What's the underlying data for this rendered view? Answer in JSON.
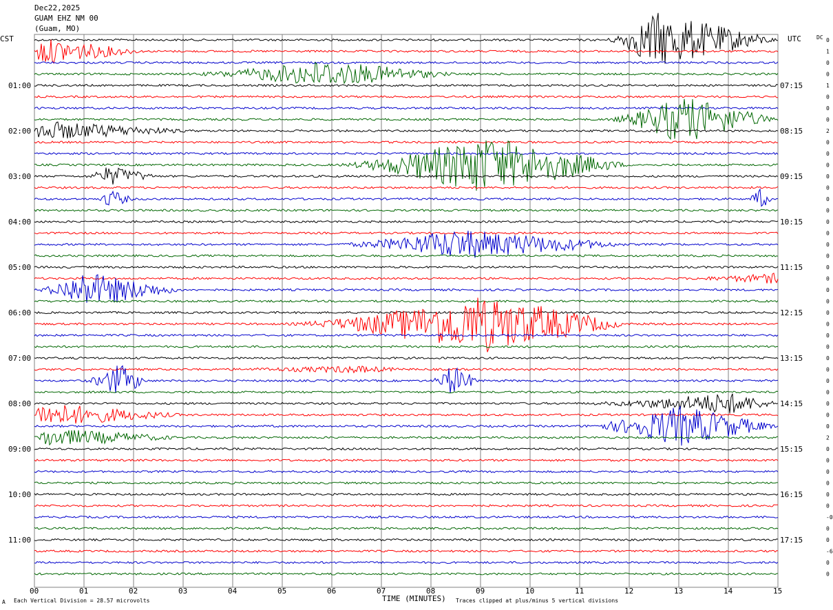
{
  "header": {
    "date": "Dec22,2025",
    "station": "GUAM EHZ NM 00",
    "location": "(Guam, MO)"
  },
  "left_tz": "CST",
  "right_tz": "UTC",
  "dc_label": "DC",
  "footer": {
    "scale": "Each Vertical Division =   28.57 microvolts",
    "xlabel": "TIME (MINUTES)",
    "clip_note": "Traces clipped at plus/minus 5 vertical divisions",
    "corner_mark": "A"
  },
  "colors": {
    "black": "#000000",
    "red": "#ff0000",
    "blue": "#0000cc",
    "green": "#006600",
    "grid": "#808080"
  },
  "chart_data": {
    "type": "line",
    "title": "GUAM EHZ NM 00",
    "xlabel": "TIME (MINUTES)",
    "xlim": [
      0,
      15
    ],
    "x_ticks": [
      "00",
      "01",
      "02",
      "03",
      "04",
      "05",
      "06",
      "07",
      "08",
      "09",
      "10",
      "11",
      "12",
      "13",
      "14",
      "15"
    ],
    "traces_per_hour": 4,
    "trace_color_cycle": [
      "black",
      "red",
      "blue",
      "green"
    ],
    "hour_labels_cst": [
      "01:00",
      "02:00",
      "03:00",
      "04:00",
      "05:00",
      "06:00",
      "07:00",
      "08:00",
      "09:00",
      "10:00",
      "11:00"
    ],
    "hour_labels_utc": [
      "07:15",
      "08:15",
      "09:15",
      "10:15",
      "11:15",
      "12:15",
      "13:15",
      "14:15",
      "15:15",
      "16:15",
      "17:15"
    ],
    "dc_offsets": [
      "0",
      "1",
      "0",
      "0",
      "1",
      "0",
      "0",
      "0",
      "2",
      "0",
      "0",
      "0",
      "0",
      "0",
      "0",
      "0",
      "0",
      "0",
      "0",
      "0",
      "0",
      "0",
      "0",
      "0",
      "0",
      "0",
      "0",
      "0",
      "0",
      "0",
      "0",
      "0",
      "0",
      "0",
      "0",
      "2",
      "0",
      "0",
      "0",
      "0",
      "0",
      "0",
      "-0",
      "0",
      "0",
      "-6",
      "0",
      "0"
    ],
    "events": [
      {
        "trace": 0,
        "start": 11.5,
        "peak": 12.5,
        "end": 15,
        "amp": 4.8
      },
      {
        "trace": 1,
        "start": 0.0,
        "peak": 0.1,
        "end": 2.2,
        "amp": 2.2
      },
      {
        "trace": 3,
        "start": 3.0,
        "peak": 5.8,
        "end": 8.5,
        "amp": 2.2
      },
      {
        "trace": 7,
        "start": 11.5,
        "peak": 13.0,
        "end": 15,
        "amp": 4.0
      },
      {
        "trace": 8,
        "start": 0.0,
        "peak": 0.05,
        "end": 3.2,
        "amp": 1.6
      },
      {
        "trace": 11,
        "start": 6.0,
        "peak": 9.0,
        "end": 12.0,
        "amp": 5.0
      },
      {
        "trace": 12,
        "start": 1.0,
        "peak": 1.5,
        "end": 2.5,
        "amp": 1.6
      },
      {
        "trace": 14,
        "start": 1.3,
        "peak": 1.5,
        "end": 2.0,
        "amp": 1.6
      },
      {
        "trace": 14,
        "start": 14.4,
        "peak": 14.6,
        "end": 14.9,
        "amp": 1.8
      },
      {
        "trace": 18,
        "start": 6.0,
        "peak": 8.5,
        "end": 12.0,
        "amp": 2.5
      },
      {
        "trace": 21,
        "start": 13.0,
        "peak": 15.0,
        "end": 15.0,
        "amp": 0.8
      },
      {
        "trace": 22,
        "start": 0.0,
        "peak": 1.0,
        "end": 3.0,
        "amp": 3.0
      },
      {
        "trace": 25,
        "start": 5.0,
        "peak": 9.0,
        "end": 12.0,
        "amp": 5.0
      },
      {
        "trace": 29,
        "start": 3.5,
        "peak": 6.5,
        "end": 7.5,
        "amp": 0.5
      },
      {
        "trace": 30,
        "start": 1.0,
        "peak": 1.7,
        "end": 2.3,
        "amp": 2.8
      },
      {
        "trace": 30,
        "start": 8.0,
        "peak": 8.4,
        "end": 9.0,
        "amp": 2.6
      },
      {
        "trace": 32,
        "start": 11.0,
        "peak": 14.0,
        "end": 15.0,
        "amp": 1.8
      },
      {
        "trace": 33,
        "start": 0.0,
        "peak": 0.1,
        "end": 3.0,
        "amp": 2.0
      },
      {
        "trace": 34,
        "start": 11.0,
        "peak": 13.0,
        "end": 15.0,
        "amp": 3.5
      },
      {
        "trace": 35,
        "start": 0.0,
        "peak": 0.2,
        "end": 3.0,
        "amp": 1.5
      }
    ]
  }
}
